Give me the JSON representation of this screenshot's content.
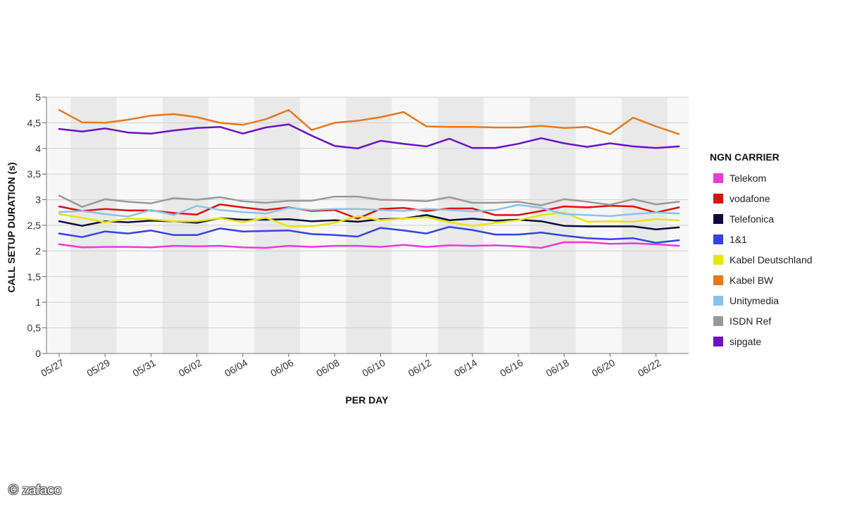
{
  "chart_data": {
    "type": "line",
    "xlabel": "PER DAY",
    "ylabel": "CALL SETUP DURATION (s)",
    "ylim": [
      0,
      5
    ],
    "y_ticks": [
      "0",
      "0,5",
      "1",
      "1,5",
      "2",
      "2,5",
      "3",
      "3,5",
      "4",
      "4,5",
      "5"
    ],
    "x": [
      "05/27",
      "05/28",
      "05/29",
      "05/30",
      "05/31",
      "06/01",
      "06/02",
      "06/03",
      "06/04",
      "06/05",
      "06/06",
      "06/07",
      "06/08",
      "06/09",
      "06/10",
      "06/11",
      "06/12",
      "06/13",
      "06/14",
      "06/15",
      "06/16",
      "06/17",
      "06/18",
      "06/19",
      "06/20",
      "06/21",
      "06/22",
      "06/23"
    ],
    "x_tick_labels": [
      "05/27",
      "05/29",
      "05/31",
      "06/02",
      "06/04",
      "06/06",
      "06/08",
      "06/10",
      "06/12",
      "06/14",
      "06/16",
      "06/18",
      "06/20",
      "06/22"
    ],
    "grid": true,
    "legend": {
      "title": "NGN CARRIER",
      "position": "right"
    },
    "series": [
      {
        "name": "Telekom",
        "color": "#e83cd8",
        "values": [
          2.13,
          2.07,
          2.08,
          2.08,
          2.07,
          2.1,
          2.09,
          2.1,
          2.07,
          2.06,
          2.1,
          2.08,
          2.1,
          2.1,
          2.08,
          2.12,
          2.08,
          2.11,
          2.1,
          2.11,
          2.09,
          2.06,
          2.17,
          2.17,
          2.14,
          2.15,
          2.13,
          2.1
        ]
      },
      {
        "name": "vodafone",
        "color": "#dd1111",
        "values": [
          2.87,
          2.78,
          2.82,
          2.79,
          2.79,
          2.74,
          2.71,
          2.91,
          2.85,
          2.8,
          2.85,
          2.78,
          2.8,
          2.63,
          2.82,
          2.84,
          2.78,
          2.83,
          2.83,
          2.7,
          2.7,
          2.78,
          2.87,
          2.85,
          2.88,
          2.87,
          2.75,
          2.85
        ]
      },
      {
        "name": "Telefonica",
        "color": "#0c0c3c",
        "values": [
          2.58,
          2.49,
          2.58,
          2.56,
          2.59,
          2.58,
          2.55,
          2.64,
          2.61,
          2.61,
          2.62,
          2.58,
          2.6,
          2.57,
          2.62,
          2.63,
          2.7,
          2.6,
          2.63,
          2.59,
          2.61,
          2.58,
          2.49,
          2.48,
          2.48,
          2.48,
          2.42,
          2.46
        ]
      },
      {
        "name": "1&1",
        "color": "#3344dd",
        "values": [
          2.34,
          2.27,
          2.38,
          2.34,
          2.4,
          2.31,
          2.31,
          2.44,
          2.38,
          2.39,
          2.4,
          2.33,
          2.31,
          2.28,
          2.45,
          2.4,
          2.34,
          2.47,
          2.41,
          2.32,
          2.32,
          2.36,
          2.3,
          2.25,
          2.23,
          2.25,
          2.16,
          2.21
        ]
      },
      {
        "name": "Kabel Deutschland",
        "color": "#e6e60a",
        "values": [
          2.72,
          2.65,
          2.56,
          2.63,
          2.62,
          2.58,
          2.58,
          2.64,
          2.56,
          2.65,
          2.48,
          2.48,
          2.55,
          2.68,
          2.6,
          2.63,
          2.66,
          2.56,
          2.49,
          2.55,
          2.6,
          2.7,
          2.75,
          2.57,
          2.58,
          2.57,
          2.62,
          2.6
        ]
      },
      {
        "name": "Kabel BW",
        "color": "#e8781c",
        "values": [
          4.75,
          4.51,
          4.5,
          4.56,
          4.64,
          4.67,
          4.61,
          4.5,
          4.46,
          4.57,
          4.75,
          4.36,
          4.5,
          4.54,
          4.61,
          4.71,
          4.43,
          4.42,
          4.42,
          4.41,
          4.41,
          4.44,
          4.4,
          4.42,
          4.28,
          4.6,
          4.43,
          4.28
        ]
      },
      {
        "name": "Unitymedia",
        "color": "#88c4ea",
        "values": [
          2.76,
          2.78,
          2.72,
          2.67,
          2.8,
          2.7,
          2.88,
          2.8,
          2.76,
          2.73,
          2.84,
          2.8,
          2.82,
          2.82,
          2.8,
          2.78,
          2.82,
          2.8,
          2.77,
          2.8,
          2.9,
          2.84,
          2.72,
          2.7,
          2.68,
          2.72,
          2.75,
          2.73
        ]
      },
      {
        "name": "ISDN Ref",
        "color": "#999999",
        "values": [
          3.08,
          2.86,
          3.01,
          2.96,
          2.93,
          3.03,
          3.0,
          3.05,
          2.97,
          2.94,
          2.98,
          2.98,
          3.06,
          3.06,
          3.0,
          2.99,
          2.97,
          3.05,
          2.94,
          2.94,
          2.96,
          2.89,
          3.01,
          2.96,
          2.9,
          3.01,
          2.91,
          2.96
        ]
      },
      {
        "name": "sipgate",
        "color": "#6a12c4",
        "values": [
          4.38,
          4.33,
          4.39,
          4.31,
          4.29,
          4.35,
          4.4,
          4.42,
          4.29,
          4.41,
          4.47,
          4.25,
          4.05,
          4.0,
          4.15,
          4.09,
          4.04,
          4.19,
          4.01,
          4.01,
          4.09,
          4.2,
          4.1,
          4.03,
          4.1,
          4.04,
          4.01,
          4.04
        ]
      }
    ]
  },
  "watermark": {
    "text": "© zafaco"
  }
}
